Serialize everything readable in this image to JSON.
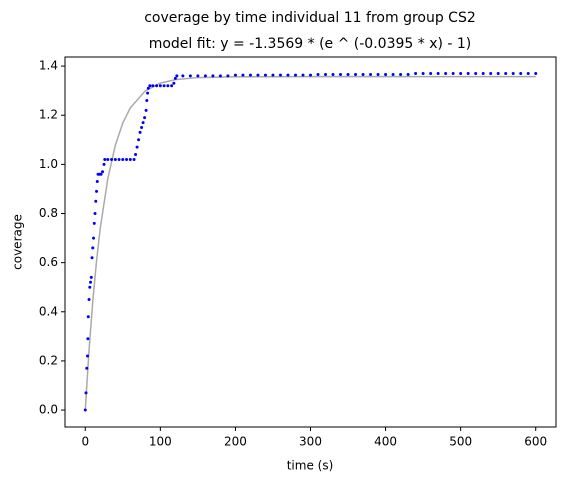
{
  "chart_data": {
    "type": "scatter",
    "title": "coverage by time individual 11 from group CS2",
    "subtitle": "model fit: y = -1.3569 * (e ^ (-0.0395 * x) - 1)",
    "x_label": "time (s)",
    "y_label": "coverage",
    "xlim": [
      -27,
      627
    ],
    "ylim": [
      -0.069,
      1.437
    ],
    "xticks": [
      0,
      100,
      200,
      300,
      400,
      500,
      600
    ],
    "yticks": [
      {
        "value": 0,
        "label": "0.0"
      },
      {
        "value": 0.2,
        "label": "0.2"
      },
      {
        "value": 0.4,
        "label": "0.4"
      },
      {
        "value": 0.6,
        "label": "0.6"
      },
      {
        "value": 0.8,
        "label": "0.8"
      },
      {
        "value": 1.0,
        "label": "1.0"
      },
      {
        "value": 1.2,
        "label": "1.2"
      },
      {
        "value": 1.4,
        "label": "1.4"
      }
    ],
    "grid": false,
    "series": [
      {
        "style": "line",
        "color": "#aaaaaa",
        "x": [
          0,
          5,
          10,
          15,
          20,
          30,
          40,
          50,
          60,
          80,
          100,
          120,
          150,
          200,
          300,
          400,
          600
        ],
        "values": [
          0,
          0.2432,
          0.4427,
          0.6065,
          0.7411,
          0.9421,
          1.0774,
          1.1686,
          1.23,
          1.2994,
          1.3308,
          1.345,
          1.3533,
          1.3564,
          1.3569,
          1.3569,
          1.3569
        ]
      },
      {
        "style": "points",
        "color": "#0000ff",
        "x": [
          0,
          1,
          2,
          3,
          3.5,
          4,
          5,
          6,
          7,
          8,
          9,
          10,
          11,
          12,
          13,
          14,
          15,
          16,
          17,
          19,
          21,
          23,
          25,
          26,
          30,
          35,
          40,
          45,
          50,
          55,
          60,
          65,
          67,
          69,
          71,
          73,
          75,
          77,
          79,
          81,
          82,
          83,
          84,
          86,
          90,
          95,
          100,
          105,
          110,
          115,
          118,
          120,
          122,
          130,
          140,
          150,
          160,
          170,
          180,
          190,
          200,
          210,
          220,
          230,
          240,
          250,
          260,
          270,
          280,
          290,
          300,
          310,
          320,
          330,
          340,
          350,
          360,
          370,
          380,
          390,
          400,
          410,
          420,
          430,
          440,
          450,
          460,
          470,
          480,
          490,
          500,
          510,
          520,
          530,
          540,
          550,
          560,
          570,
          580,
          590,
          600
        ],
        "values": [
          0,
          0.07,
          0.17,
          0.22,
          0.29,
          0.38,
          0.45,
          0.5,
          0.52,
          0.54,
          0.62,
          0.66,
          0.7,
          0.76,
          0.8,
          0.85,
          0.89,
          0.93,
          0.96,
          0.96,
          0.96,
          0.97,
          1.0,
          1.02,
          1.02,
          1.02,
          1.02,
          1.02,
          1.02,
          1.02,
          1.02,
          1.02,
          1.04,
          1.07,
          1.1,
          1.13,
          1.15,
          1.17,
          1.19,
          1.22,
          1.26,
          1.29,
          1.31,
          1.32,
          1.32,
          1.32,
          1.32,
          1.32,
          1.32,
          1.32,
          1.33,
          1.35,
          1.36,
          1.36,
          1.36,
          1.36,
          1.36,
          1.36,
          1.36,
          1.36,
          1.363,
          1.363,
          1.363,
          1.363,
          1.363,
          1.363,
          1.363,
          1.363,
          1.363,
          1.363,
          1.363,
          1.366,
          1.366,
          1.366,
          1.366,
          1.366,
          1.366,
          1.366,
          1.366,
          1.366,
          1.366,
          1.366,
          1.366,
          1.366,
          1.37,
          1.37,
          1.37,
          1.37,
          1.37,
          1.37,
          1.37,
          1.37,
          1.37,
          1.37,
          1.37,
          1.37,
          1.37,
          1.37,
          1.37,
          1.37,
          1.37
        ]
      }
    ]
  }
}
